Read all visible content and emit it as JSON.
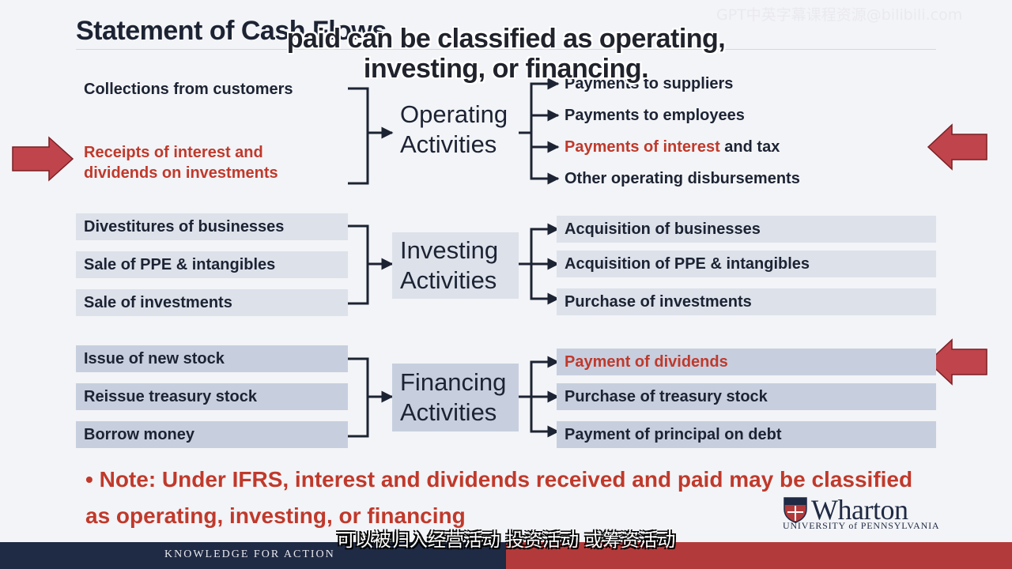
{
  "slide": {
    "title": "Statement of Cash Flows",
    "watermark": "GPT中英字幕课程资源@bilibili.com",
    "caption_line1": "paid can be classified as operating,",
    "caption_line2": "investing, or financing.",
    "subtitle_cn": "可以被归入经营活动 投资活动 或筹资活动"
  },
  "operating": {
    "label_line1": "Operating",
    "label_line2": "Activities",
    "inflows": [
      "Collections from customers",
      "Receipts of interest and",
      "dividends on investments"
    ],
    "outflows": [
      "Payments to suppliers",
      "Payments to employees",
      "Payments of interest",
      "and tax",
      "Other operating disbursements"
    ]
  },
  "investing": {
    "label_line1": "Investing",
    "label_line2": "Activities",
    "inflows": [
      "Divestitures of businesses",
      "Sale of PPE & intangibles",
      "Sale of investments"
    ],
    "outflows": [
      "Acquisition of businesses",
      "Acquisition of PPE & intangibles",
      "Purchase of investments"
    ]
  },
  "financing": {
    "label_line1": "Financing",
    "label_line2": "Activities",
    "inflows": [
      "Issue of new stock",
      "Reissue treasury stock",
      "Borrow money"
    ],
    "outflows": [
      "Payment of dividends",
      "Purchase of treasury stock",
      "Payment of principal on debt"
    ]
  },
  "note": {
    "bullet": "•",
    "text": "Note: Under IFRS, interest and dividends received and paid may be classified as operating, investing, or financing"
  },
  "branding": {
    "logo_name": "Wharton",
    "logo_sub": "UNIVERSITY of PENNSYLVANIA",
    "footer": "KNOWLEDGE FOR ACTION"
  },
  "colors": {
    "highlight_red": "#c0392b",
    "arrow_red": "#c0444c",
    "navy": "#1f2a44"
  }
}
